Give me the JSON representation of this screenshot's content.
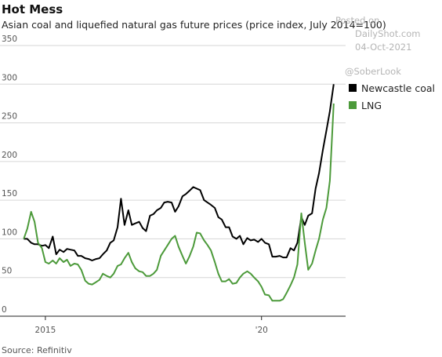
{
  "chart_data": {
    "type": "line",
    "title": "Hot Mess",
    "subtitle": "Asian coal and liquefied natural gas future prices (price index, July 2014=100)",
    "source": "Source: Refinitiv",
    "watermark": [
      "Posted on",
      "DailyShot.com",
      "04-Oct-2021",
      "@SoberLook"
    ],
    "x": [
      2014.5,
      2014.58,
      2014.67,
      2014.75,
      2014.83,
      2014.92,
      2015.0,
      2015.08,
      2015.17,
      2015.25,
      2015.33,
      2015.42,
      2015.5,
      2015.58,
      2015.67,
      2015.75,
      2015.83,
      2015.92,
      2016.0,
      2016.08,
      2016.17,
      2016.25,
      2016.33,
      2016.42,
      2016.5,
      2016.58,
      2016.67,
      2016.75,
      2016.83,
      2016.92,
      2017.0,
      2017.08,
      2017.17,
      2017.25,
      2017.33,
      2017.42,
      2017.5,
      2017.58,
      2017.67,
      2017.75,
      2017.83,
      2017.92,
      2018.0,
      2018.08,
      2018.17,
      2018.25,
      2018.33,
      2018.42,
      2018.5,
      2018.58,
      2018.67,
      2018.75,
      2018.83,
      2018.92,
      2019.0,
      2019.08,
      2019.17,
      2019.25,
      2019.33,
      2019.42,
      2019.5,
      2019.58,
      2019.67,
      2019.75,
      2019.83,
      2019.92,
      2020.0,
      2020.08,
      2020.17,
      2020.25,
      2020.33,
      2020.42,
      2020.5,
      2020.58,
      2020.67,
      2020.75,
      2020.83,
      2020.92,
      2021.0,
      2021.08,
      2021.17,
      2021.25,
      2021.33,
      2021.42,
      2021.5,
      2021.58,
      2021.67
    ],
    "series": [
      {
        "name": "Newcastle coal",
        "color": "#000000",
        "values": [
          100,
          100,
          95,
          93,
          93,
          91,
          92,
          88,
          103,
          80,
          86,
          83,
          87,
          86,
          85,
          78,
          78,
          75,
          74,
          72,
          74,
          75,
          80,
          85,
          95,
          98,
          115,
          152,
          118,
          137,
          118,
          120,
          122,
          114,
          110,
          130,
          132,
          137,
          140,
          147,
          148,
          147,
          135,
          142,
          155,
          158,
          162,
          167,
          165,
          163,
          150,
          147,
          144,
          140,
          128,
          125,
          115,
          115,
          103,
          100,
          104,
          93,
          101,
          98,
          99,
          96,
          100,
          95,
          93,
          77,
          77,
          78,
          76,
          76,
          88,
          85,
          95,
          128,
          118,
          130,
          133,
          165,
          185,
          215,
          240,
          265,
          300
        ]
      },
      {
        "name": "LNG",
        "color": "#4c9a3a",
        "values": [
          100,
          113,
          135,
          122,
          95,
          88,
          70,
          68,
          72,
          68,
          75,
          70,
          73,
          65,
          68,
          67,
          60,
          46,
          42,
          41,
          44,
          47,
          55,
          52,
          50,
          55,
          65,
          67,
          75,
          82,
          70,
          62,
          58,
          57,
          52,
          52,
          55,
          60,
          78,
          85,
          92,
          100,
          104,
          90,
          78,
          68,
          77,
          90,
          108,
          107,
          98,
          92,
          85,
          70,
          55,
          45,
          45,
          48,
          42,
          43,
          50,
          55,
          58,
          55,
          50,
          45,
          38,
          28,
          27,
          20,
          20,
          20,
          22,
          30,
          40,
          50,
          67,
          133,
          95,
          60,
          68,
          85,
          100,
          125,
          140,
          175,
          275
        ]
      }
    ],
    "xlim": [
      2013.95,
      2021.8
    ],
    "xticks": [
      2015,
      {
        "value": 2020,
        "label": "'20"
      }
    ],
    "ylim": [
      0,
      350
    ],
    "yticks": [
      0,
      50,
      100,
      150,
      200,
      250,
      300,
      350
    ],
    "grid": true,
    "legend": "right"
  }
}
